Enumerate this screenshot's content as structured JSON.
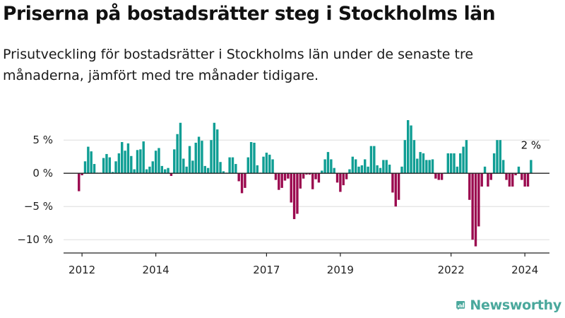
{
  "title": "Priserna på bostadsrätter steg i Stockholms län",
  "subtitle": "Prisutveckling för bostadsrätter i Stockholms län under de senaste tre månaderna, jämfört med tre månader tidigare.",
  "brand": {
    "name": "Newsworthy",
    "color": "#4aa89c"
  },
  "colors": {
    "positive": "#0f9e94",
    "negative": "#9b0a4f",
    "axis": "#222222",
    "grid": "#dddddd"
  },
  "chart_data": {
    "type": "bar",
    "title": "Priserna på bostadsrätter steg i Stockholms län",
    "subtitle": "Prisutveckling för bostadsrätter i Stockholms län under de senaste tre månaderna, jämfört med tre månader tidigare.",
    "xlabel": "",
    "ylabel": "",
    "y_unit": "%",
    "ylim": [
      -12,
      8
    ],
    "y_ticks": [
      {
        "value": 5,
        "label": "5 %"
      },
      {
        "value": 0,
        "label": "0 %"
      },
      {
        "value": -5,
        "label": "−5 %"
      },
      {
        "value": -10,
        "label": "−10 %"
      }
    ],
    "x_ticks": [
      "2012",
      "2014",
      "2017",
      "2019",
      "2022",
      "2024"
    ],
    "x_tick_years": [
      2012,
      2014,
      2017,
      2019,
      2022,
      2024
    ],
    "x_domain": [
      "2011-07",
      "2024-09"
    ],
    "grid": true,
    "last_value_label": "2 %",
    "series": [
      {
        "values": [
          [
            "2011-12",
            -2.7
          ],
          [
            "2012-01",
            -0.3
          ],
          [
            "2012-02",
            1.8
          ],
          [
            "2012-03",
            4.0
          ],
          [
            "2012-04",
            3.3
          ],
          [
            "2012-05",
            1.4
          ],
          [
            "2012-06",
            0.1
          ],
          [
            "2012-07",
            0.1
          ],
          [
            "2012-08",
            2.3
          ],
          [
            "2012-09",
            2.9
          ],
          [
            "2012-10",
            2.4
          ],
          [
            "2012-11",
            0.2
          ],
          [
            "2012-12",
            1.8
          ],
          [
            "2013-01",
            3.0
          ],
          [
            "2013-02",
            4.7
          ],
          [
            "2013-03",
            3.4
          ],
          [
            "2013-04",
            4.5
          ],
          [
            "2013-05",
            2.6
          ],
          [
            "2013-06",
            0.6
          ],
          [
            "2013-07",
            3.5
          ],
          [
            "2013-08",
            3.6
          ],
          [
            "2013-09",
            4.8
          ],
          [
            "2013-10",
            0.6
          ],
          [
            "2013-11",
            1.0
          ],
          [
            "2013-12",
            1.8
          ],
          [
            "2014-01",
            3.4
          ],
          [
            "2014-02",
            3.8
          ],
          [
            "2014-03",
            1.1
          ],
          [
            "2014-04",
            0.6
          ],
          [
            "2014-05",
            0.8
          ],
          [
            "2014-06",
            -0.4
          ],
          [
            "2014-07",
            3.6
          ],
          [
            "2014-08",
            5.9
          ],
          [
            "2014-09",
            7.6
          ],
          [
            "2014-10",
            2.2
          ],
          [
            "2014-11",
            1.0
          ],
          [
            "2014-12",
            4.1
          ],
          [
            "2015-01",
            1.9
          ],
          [
            "2015-02",
            4.6
          ],
          [
            "2015-03",
            5.5
          ],
          [
            "2015-04",
            4.9
          ],
          [
            "2015-05",
            1.1
          ],
          [
            "2015-06",
            0.8
          ],
          [
            "2015-07",
            5.0
          ],
          [
            "2015-08",
            7.6
          ],
          [
            "2015-09",
            6.6
          ],
          [
            "2015-10",
            1.7
          ],
          [
            "2015-11",
            0.3
          ],
          [
            "2015-12",
            0.1
          ],
          [
            "2016-01",
            2.4
          ],
          [
            "2016-02",
            2.4
          ],
          [
            "2016-03",
            1.4
          ],
          [
            "2016-04",
            -1.2
          ],
          [
            "2016-05",
            -3.0
          ],
          [
            "2016-06",
            -2.2
          ],
          [
            "2016-07",
            2.4
          ],
          [
            "2016-08",
            4.7
          ],
          [
            "2016-09",
            4.6
          ],
          [
            "2016-10",
            1.2
          ],
          [
            "2016-11",
            0.1
          ],
          [
            "2016-12",
            2.5
          ],
          [
            "2017-01",
            3.1
          ],
          [
            "2017-02",
            2.8
          ],
          [
            "2017-03",
            2.1
          ],
          [
            "2017-04",
            -1.0
          ],
          [
            "2017-05",
            -2.5
          ],
          [
            "2017-06",
            -2.2
          ],
          [
            "2017-07",
            -1.1
          ],
          [
            "2017-08",
            -0.8
          ],
          [
            "2017-09",
            -4.4
          ],
          [
            "2017-10",
            -6.9
          ],
          [
            "2017-11",
            -6.1
          ],
          [
            "2017-12",
            -2.3
          ],
          [
            "2018-01",
            -0.8
          ],
          [
            "2018-02",
            -0.2
          ],
          [
            "2018-03",
            -0.2
          ],
          [
            "2018-04",
            -2.4
          ],
          [
            "2018-05",
            -0.9
          ],
          [
            "2018-06",
            -1.4
          ],
          [
            "2018-07",
            0.4
          ],
          [
            "2018-08",
            2.1
          ],
          [
            "2018-09",
            3.2
          ],
          [
            "2018-10",
            2.1
          ],
          [
            "2018-11",
            0.8
          ],
          [
            "2018-12",
            -1.4
          ],
          [
            "2019-01",
            -2.8
          ],
          [
            "2019-02",
            -1.8
          ],
          [
            "2019-03",
            -0.9
          ],
          [
            "2019-04",
            0.6
          ],
          [
            "2019-05",
            2.5
          ],
          [
            "2019-06",
            2.1
          ],
          [
            "2019-07",
            1.0
          ],
          [
            "2019-08",
            1.2
          ],
          [
            "2019-09",
            2.1
          ],
          [
            "2019-10",
            1.0
          ],
          [
            "2019-11",
            4.1
          ],
          [
            "2019-12",
            4.1
          ],
          [
            "2020-01",
            1.2
          ],
          [
            "2020-02",
            0.8
          ],
          [
            "2020-03",
            2.0
          ],
          [
            "2020-04",
            2.0
          ],
          [
            "2020-05",
            1.3
          ],
          [
            "2020-06",
            -2.9
          ],
          [
            "2020-07",
            -5.0
          ],
          [
            "2020-08",
            -4.0
          ],
          [
            "2020-09",
            1.0
          ],
          [
            "2020-10",
            5.0
          ],
          [
            "2020-11",
            8.0
          ],
          [
            "2020-12",
            7.2
          ],
          [
            "2021-01",
            5.0
          ],
          [
            "2021-02",
            2.2
          ],
          [
            "2021-03",
            3.2
          ],
          [
            "2021-04",
            3.0
          ],
          [
            "2021-05",
            2.0
          ],
          [
            "2021-06",
            2.0
          ],
          [
            "2021-07",
            2.1
          ],
          [
            "2021-08",
            -0.8
          ],
          [
            "2021-09",
            -1.0
          ],
          [
            "2021-10",
            -1.0
          ],
          [
            "2021-11",
            0.1
          ],
          [
            "2021-12",
            3.0
          ],
          [
            "2022-01",
            3.0
          ],
          [
            "2022-02",
            3.0
          ],
          [
            "2022-03",
            1.0
          ],
          [
            "2022-04",
            3.0
          ],
          [
            "2022-05",
            4.0
          ],
          [
            "2022-06",
            5.0
          ],
          [
            "2022-07",
            -4.0
          ],
          [
            "2022-08",
            -10.0
          ],
          [
            "2022-09",
            -11.0
          ],
          [
            "2022-10",
            -8.0
          ],
          [
            "2022-11",
            -2.0
          ],
          [
            "2022-12",
            1.0
          ],
          [
            "2023-01",
            -2.0
          ],
          [
            "2023-02",
            -1.0
          ],
          [
            "2023-03",
            3.0
          ],
          [
            "2023-04",
            5.0
          ],
          [
            "2023-05",
            5.0
          ],
          [
            "2023-06",
            2.0
          ],
          [
            "2023-07",
            -1.0
          ],
          [
            "2023-08",
            -2.0
          ],
          [
            "2023-09",
            -2.0
          ],
          [
            "2023-10",
            -0.3
          ],
          [
            "2023-11",
            1.0
          ],
          [
            "2023-12",
            -1.0
          ],
          [
            "2024-01",
            -2.0
          ],
          [
            "2024-02",
            -2.0
          ],
          [
            "2024-03",
            2.0
          ]
        ]
      }
    ]
  }
}
